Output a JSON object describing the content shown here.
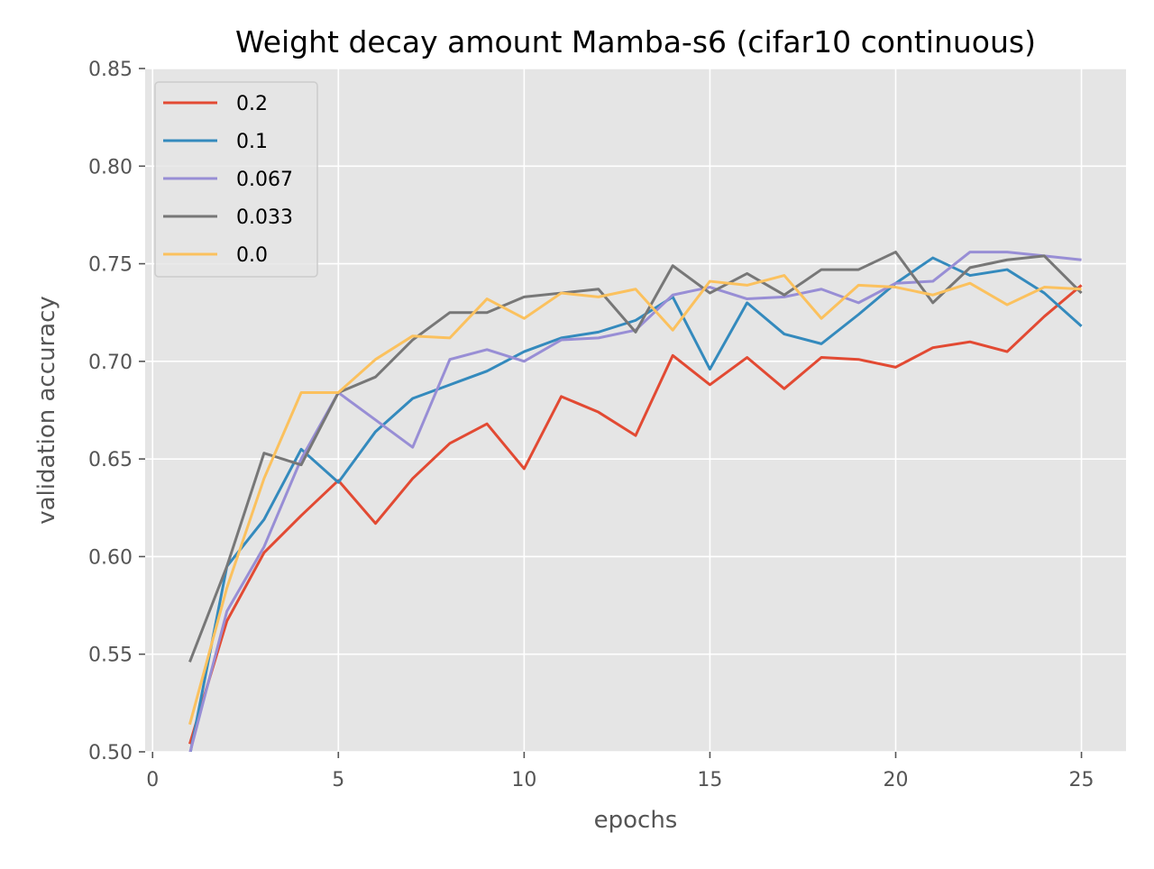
{
  "chart_data": {
    "type": "line",
    "title": "Weight decay amount Mamba-s6 (cifar10 continuous)",
    "xlabel": "epochs",
    "ylabel": "validation accuracy",
    "xlim": [
      -0.2,
      26.2
    ],
    "ylim": [
      0.5,
      0.85
    ],
    "xticks": [
      0,
      5,
      10,
      15,
      20,
      25
    ],
    "xtick_labels": [
      "0",
      "5",
      "10",
      "15",
      "20",
      "25"
    ],
    "yticks": [
      0.5,
      0.55,
      0.6,
      0.65,
      0.7,
      0.75,
      0.8,
      0.85
    ],
    "ytick_labels": [
      "0.50",
      "0.55",
      "0.60",
      "0.65",
      "0.70",
      "0.75",
      "0.80",
      "0.85"
    ],
    "grid": true,
    "legend_position": "top-left",
    "x": [
      1,
      2,
      3,
      4,
      5,
      6,
      7,
      8,
      9,
      10,
      11,
      12,
      13,
      14,
      15,
      16,
      17,
      18,
      19,
      20,
      21,
      22,
      23,
      24,
      25
    ],
    "series": [
      {
        "name": "0.2",
        "color": "#E24A33",
        "values": [
          0.504,
          0.567,
          0.602,
          0.621,
          0.639,
          0.617,
          0.64,
          0.658,
          0.668,
          0.645,
          0.682,
          0.674,
          0.662,
          0.703,
          0.688,
          0.702,
          0.686,
          0.702,
          0.701,
          0.697,
          0.707,
          0.71,
          0.705,
          0.723,
          0.739
        ]
      },
      {
        "name": "0.1",
        "color": "#348ABD",
        "values": [
          0.498,
          0.595,
          0.619,
          0.655,
          0.638,
          0.664,
          0.681,
          0.688,
          0.695,
          0.705,
          0.712,
          0.715,
          0.721,
          0.733,
          0.696,
          0.73,
          0.714,
          0.709,
          0.724,
          0.74,
          0.753,
          0.744,
          0.747,
          0.735,
          0.718
        ]
      },
      {
        "name": "0.067",
        "color": "#988ED5",
        "values": [
          0.499,
          0.572,
          0.605,
          0.65,
          0.684,
          0.67,
          0.656,
          0.701,
          0.706,
          0.7,
          0.711,
          0.712,
          0.716,
          0.734,
          0.738,
          0.732,
          0.733,
          0.737,
          0.73,
          0.74,
          0.741,
          0.756,
          0.756,
          0.754,
          0.752
        ]
      },
      {
        "name": "0.033",
        "color": "#777777",
        "values": [
          0.546,
          0.595,
          0.653,
          0.647,
          0.684,
          0.692,
          0.711,
          0.725,
          0.725,
          0.733,
          0.735,
          0.737,
          0.715,
          0.749,
          0.735,
          0.745,
          0.734,
          0.747,
          0.747,
          0.756,
          0.73,
          0.748,
          0.752,
          0.754,
          0.735
        ]
      },
      {
        "name": "0.0",
        "color": "#FBC15E",
        "values": [
          0.514,
          0.584,
          0.64,
          0.684,
          0.684,
          0.701,
          0.713,
          0.712,
          0.732,
          0.722,
          0.735,
          0.733,
          0.737,
          0.716,
          0.741,
          0.739,
          0.744,
          0.722,
          0.739,
          0.738,
          0.734,
          0.74,
          0.729,
          0.738,
          0.737
        ]
      }
    ]
  }
}
